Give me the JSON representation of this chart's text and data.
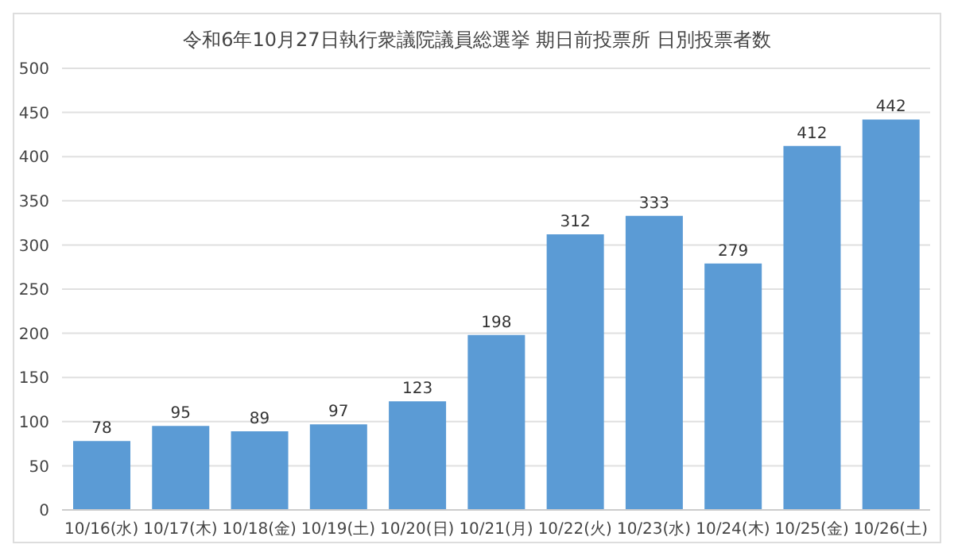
{
  "chart_data": {
    "type": "bar",
    "title": "令和6年10月27日執行衆議院議員総選挙  期日前投票所 日別投票者数",
    "categories": [
      "10/16(水)",
      "10/17(木)",
      "10/18(金)",
      "10/19(土)",
      "10/20(日)",
      "10/21(月)",
      "10/22(火)",
      "10/23(水)",
      "10/24(木)",
      "10/25(金)",
      "10/26(土)"
    ],
    "values": [
      78,
      95,
      89,
      97,
      123,
      198,
      312,
      333,
      279,
      412,
      442
    ],
    "color": "#5b9bd5",
    "ylim": [
      0,
      500
    ],
    "yticks": [
      0,
      50,
      100,
      150,
      200,
      250,
      300,
      350,
      400,
      450,
      500
    ],
    "grid": "y",
    "data_labels": true,
    "legend": false
  }
}
